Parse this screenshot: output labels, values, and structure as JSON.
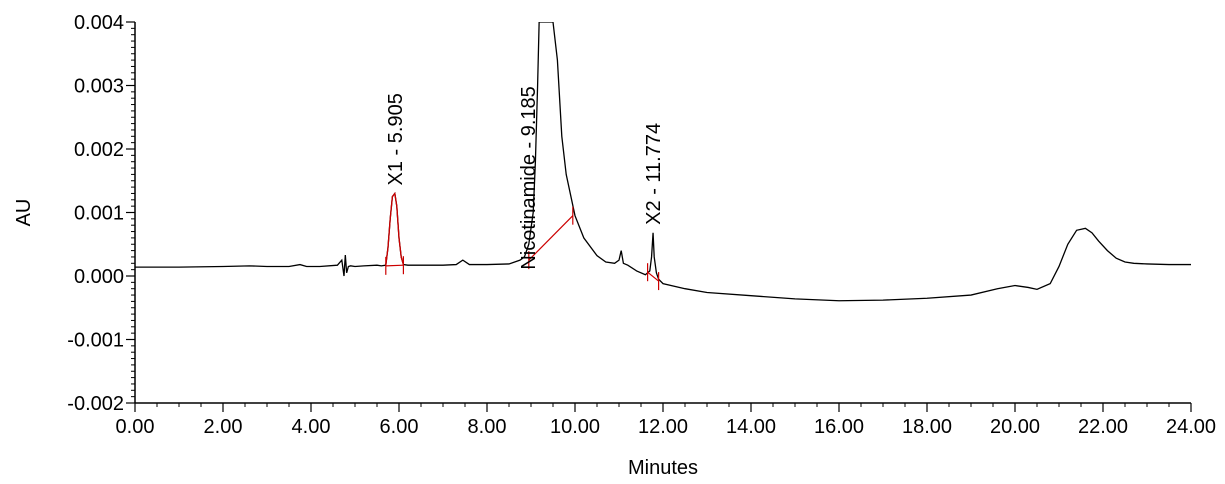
{
  "chart_data": {
    "type": "line",
    "title": "",
    "xlabel": "Minutes",
    "ylabel": "AU",
    "xlim": [
      0,
      24
    ],
    "ylim": [
      -0.002,
      0.004
    ],
    "x_ticks": [
      "0.00",
      "2.00",
      "4.00",
      "6.00",
      "8.00",
      "10.00",
      "12.00",
      "14.00",
      "16.00",
      "18.00",
      "20.00",
      "22.00",
      "24.00"
    ],
    "y_ticks": [
      "0.004",
      "0.003",
      "0.002",
      "0.001",
      "0.000",
      "-0.001",
      "-0.002"
    ],
    "grid": false,
    "colors": {
      "trace": "#000000",
      "integration": "#cc0000"
    },
    "series": [
      {
        "x": [
          0,
          1,
          2,
          2.6,
          3,
          3.5,
          3.75,
          3.9,
          4.2,
          4.6,
          4.7,
          4.75,
          4.78,
          4.81,
          4.85,
          4.9,
          5.0,
          5.2,
          5.5,
          5.6,
          5.7,
          5.75,
          5.8,
          5.85,
          5.905,
          5.95,
          6.0,
          6.05,
          6.1,
          6.2,
          6.5,
          7.0,
          7.3,
          7.45,
          7.6,
          8.0,
          8.5,
          8.75,
          8.85,
          8.95,
          9.05,
          9.1,
          9.15,
          9.185,
          9.2,
          9.3,
          9.4,
          9.5,
          9.6,
          9.7,
          9.8,
          10.0,
          10.2,
          10.5,
          10.7,
          10.9,
          11.0,
          11.05,
          11.1,
          11.2,
          11.4,
          11.6,
          11.7,
          11.74,
          11.774,
          11.8,
          11.85,
          11.9,
          12.0,
          12.5,
          13.0,
          14.0,
          15.0,
          16.0,
          17.0,
          18.0,
          19.0,
          19.6,
          20.0,
          20.3,
          20.5,
          20.8,
          21.0,
          21.2,
          21.4,
          21.6,
          21.75,
          21.9,
          22.1,
          22.3,
          22.5,
          22.7,
          23.0,
          23.5,
          24.0
        ],
        "y": [
          0.00014,
          0.00014,
          0.00015,
          0.00016,
          0.00015,
          0.00015,
          0.00018,
          0.00015,
          0.00015,
          0.00017,
          0.00025,
          0.0,
          0.00033,
          5e-05,
          0.00015,
          0.00016,
          0.00015,
          0.00016,
          0.00017,
          0.00016,
          0.00017,
          0.00045,
          0.0009,
          0.00125,
          0.0013,
          0.0011,
          0.0006,
          0.0003,
          0.00018,
          0.00017,
          0.00017,
          0.00017,
          0.00018,
          0.00025,
          0.00018,
          0.00018,
          0.00019,
          0.00025,
          0.0003,
          0.0005,
          0.001,
          0.0018,
          0.003,
          0.004,
          0.004,
          0.004,
          0.004,
          0.004,
          0.0034,
          0.0022,
          0.0016,
          0.00095,
          0.0006,
          0.00032,
          0.00022,
          0.0002,
          0.00025,
          0.0004,
          0.0002,
          0.00017,
          8e-05,
          2e-05,
          8e-05,
          0.0003,
          0.00068,
          0.0003,
          5e-05,
          -5e-05,
          -0.00012,
          -0.0002,
          -0.00026,
          -0.00031,
          -0.00036,
          -0.00039,
          -0.00038,
          -0.00035,
          -0.0003,
          -0.0002,
          -0.00015,
          -0.00018,
          -0.00021,
          -0.00012,
          0.00015,
          0.0005,
          0.00072,
          0.00075,
          0.00068,
          0.00055,
          0.0004,
          0.00028,
          0.00022,
          0.0002,
          0.00019,
          0.00018,
          0.00018
        ]
      }
    ],
    "annotations": [
      {
        "label": "X1 - 5.905",
        "time": 5.905,
        "apex": 0.0013,
        "start": [
          5.7,
          0.00016
        ],
        "end": [
          6.1,
          0.00017
        ]
      },
      {
        "label": "Nicotinamide - 9.185",
        "time": 9.185,
        "apex": 0.004,
        "start": [
          8.95,
          0.00025
        ],
        "end": [
          9.95,
          0.00095
        ]
      },
      {
        "label": "X2 - 11.774",
        "time": 11.774,
        "apex": 0.00068,
        "start": [
          11.65,
          6e-05
        ],
        "end": [
          11.9,
          -8e-05
        ]
      }
    ]
  }
}
